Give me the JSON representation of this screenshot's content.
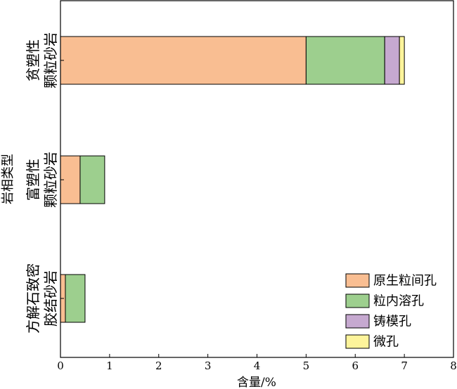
{
  "chart_data": {
    "type": "bar",
    "orientation": "horizontal",
    "stacked": true,
    "xlabel": "含量/%",
    "ylabel": "岩相类型",
    "xlim": [
      0,
      8
    ],
    "xticks": [
      "0",
      "1",
      "2",
      "3",
      "4",
      "5",
      "6",
      "7",
      "8"
    ],
    "categories": [
      [
        "贫塑性",
        "颗粒砂岩"
      ],
      [
        "富塑性",
        "颗粒砂岩"
      ],
      [
        "方解石致密",
        "胶结砂岩"
      ]
    ],
    "series": [
      {
        "name": "原生粒间孔",
        "color": "#f9be92",
        "values": [
          5.0,
          0.4,
          0.1
        ]
      },
      {
        "name": "粒内溶孔",
        "color": "#9dcf8e",
        "values": [
          1.6,
          0.5,
          0.4
        ]
      },
      {
        "name": "铸模孔",
        "color": "#c6a9d0",
        "values": [
          0.3,
          0.0,
          0.0
        ]
      },
      {
        "name": "微孔",
        "color": "#fdf49b",
        "values": [
          0.1,
          0.0,
          0.0
        ]
      }
    ],
    "grid": false,
    "legend_position": "bottom-right"
  }
}
